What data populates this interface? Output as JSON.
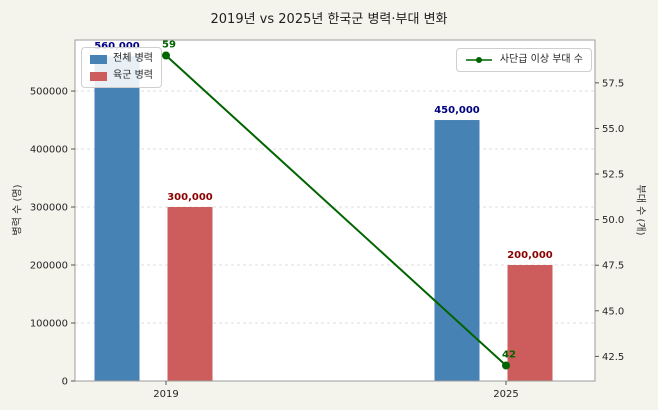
{
  "chart_data": {
    "type": "bar+line",
    "title": "2019년 vs 2025년 한국군 병력·부대 변화",
    "categories": [
      "2019",
      "2025"
    ],
    "bar_series": [
      {
        "name": "전체 병력",
        "values": [
          560000,
          450000
        ],
        "labels": [
          "560,000",
          "450,000"
        ],
        "color": "#4682b4",
        "label_color": "#000080"
      },
      {
        "name": "육군 병력",
        "values": [
          300000,
          200000
        ],
        "labels": [
          "300,000",
          "200,000"
        ],
        "color": "#cd5c5c",
        "label_color": "#8b0000"
      }
    ],
    "line_series": {
      "name": "사단급 이상 부대 수",
      "values": [
        59,
        42
      ],
      "labels": [
        "59",
        "42"
      ],
      "color": "#006400"
    },
    "y_left": {
      "label": "병력 수 (명)",
      "ticks": [
        0,
        100000,
        200000,
        300000,
        400000,
        500000
      ],
      "min": 0,
      "max": 588000
    },
    "y_right": {
      "label": "부대 수 (개)",
      "ticks": [
        42.5,
        45.0,
        47.5,
        50.0,
        52.5,
        55.0,
        57.5
      ],
      "min": 41.15,
      "max": 59.85
    },
    "background": "#f4f4ed",
    "plot_background": "#ffffff",
    "grid": "dashed",
    "legend_positions": [
      "upper left",
      "upper right"
    ]
  }
}
